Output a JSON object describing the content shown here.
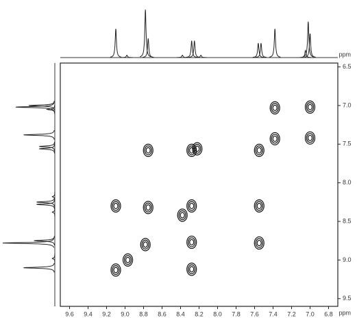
{
  "chart_data": {
    "type": "contour",
    "x_label": "ppm",
    "y_label": "ppm",
    "xlim": [
      9.7,
      6.7
    ],
    "ylim": [
      6.45,
      9.6
    ],
    "xticks": [
      9.6,
      9.4,
      9.2,
      {
        "value": 9,
        "label": "9.0"
      },
      8.8,
      8.6,
      8.4,
      8.2,
      {
        "value": 8,
        "label": "8.0"
      },
      7.8,
      7.6,
      7.4,
      7.2,
      {
        "value": 7,
        "label": "7.0"
      },
      6.8
    ],
    "yticks": [
      6.5,
      {
        "value": 7,
        "label": "7.0"
      },
      7.5,
      {
        "value": 8,
        "label": "8.0"
      },
      8.5,
      {
        "value": 9,
        "label": "9.0"
      },
      9.5
    ],
    "color": "#111111",
    "x": [
      7.0,
      7.0,
      7.38,
      7.38,
      7.55,
      8.75,
      8.28,
      8.22,
      9.1,
      8.75,
      8.28,
      7.55,
      8.38,
      8.78,
      8.28,
      7.55,
      9.1,
      8.97,
      8.28
    ],
    "values": [
      7.02,
      7.42,
      7.03,
      7.43,
      7.58,
      7.58,
      7.58,
      7.56,
      8.3,
      8.32,
      8.3,
      8.3,
      8.42,
      8.8,
      8.77,
      8.78,
      9.13,
      9.0,
      9.12
    ],
    "projection": {
      "x": [
        9.1,
        8.98,
        8.78,
        8.75,
        8.38,
        8.28,
        8.25,
        8.18,
        7.56,
        7.53,
        7.38,
        7.05,
        7.02,
        7.0
      ],
      "values": [
        0.6,
        0.05,
        1.0,
        0.4,
        0.05,
        0.35,
        0.35,
        0.05,
        0.3,
        0.3,
        0.6,
        0.15,
        0.75,
        0.5
      ]
    }
  }
}
